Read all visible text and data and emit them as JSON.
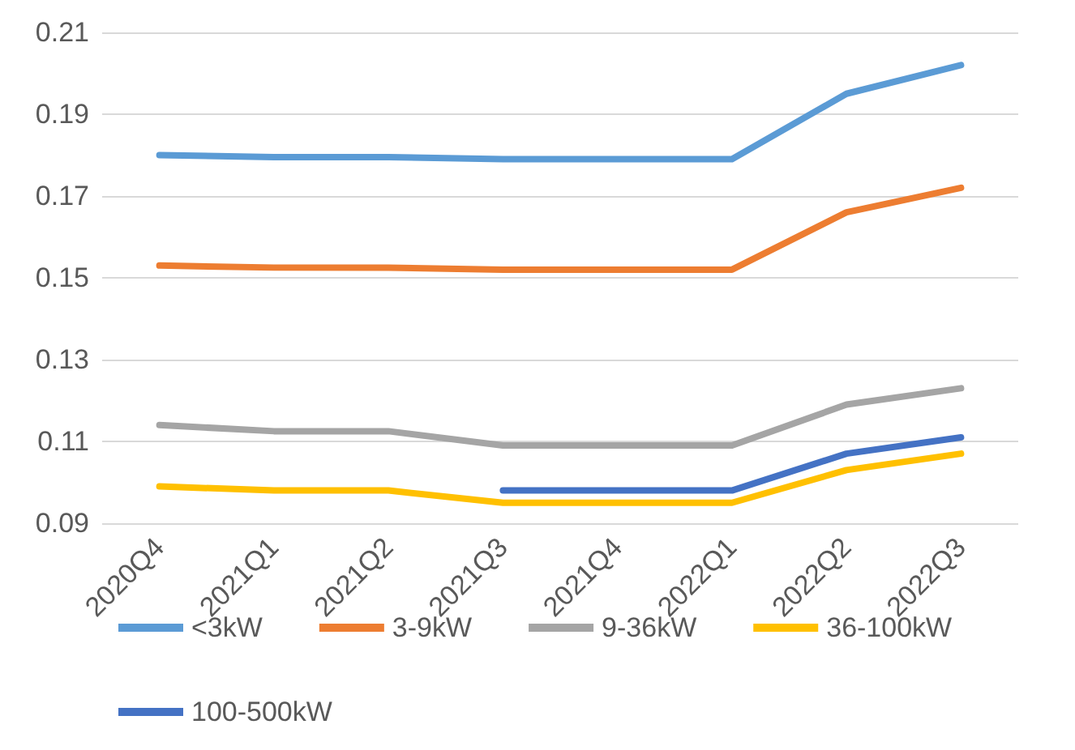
{
  "chart_data": {
    "type": "line",
    "categories": [
      "2020Q4",
      "2021Q1",
      "2021Q2",
      "2021Q3",
      "2021Q4",
      "2022Q1",
      "2022Q2",
      "2022Q3"
    ],
    "series": [
      {
        "name": "<3kW",
        "color": "#5b9bd5",
        "values": [
          0.18,
          0.1795,
          0.1795,
          0.179,
          0.179,
          0.179,
          0.195,
          0.202
        ]
      },
      {
        "name": "3-9kW",
        "color": "#ed7d31",
        "values": [
          0.153,
          0.1525,
          0.1525,
          0.152,
          0.152,
          0.152,
          0.166,
          0.172
        ]
      },
      {
        "name": "9-36kW",
        "color": "#a5a5a5",
        "values": [
          0.114,
          0.1125,
          0.1125,
          0.109,
          0.109,
          0.109,
          0.119,
          0.123
        ]
      },
      {
        "name": "36-100kW",
        "color": "#ffc000",
        "values": [
          0.099,
          0.098,
          0.098,
          0.095,
          0.095,
          0.095,
          0.103,
          0.107
        ]
      },
      {
        "name": "100-500kW",
        "color": "#4472c4",
        "values": [
          null,
          null,
          null,
          0.098,
          0.098,
          0.098,
          0.107,
          0.111
        ]
      }
    ],
    "ylim": [
      0.09,
      0.21
    ],
    "yticks": [
      0.09,
      0.11,
      0.13,
      0.15,
      0.17,
      0.19,
      0.21
    ],
    "grid": "y",
    "legend": "bottom",
    "marker": "none",
    "line_style": "solid"
  }
}
